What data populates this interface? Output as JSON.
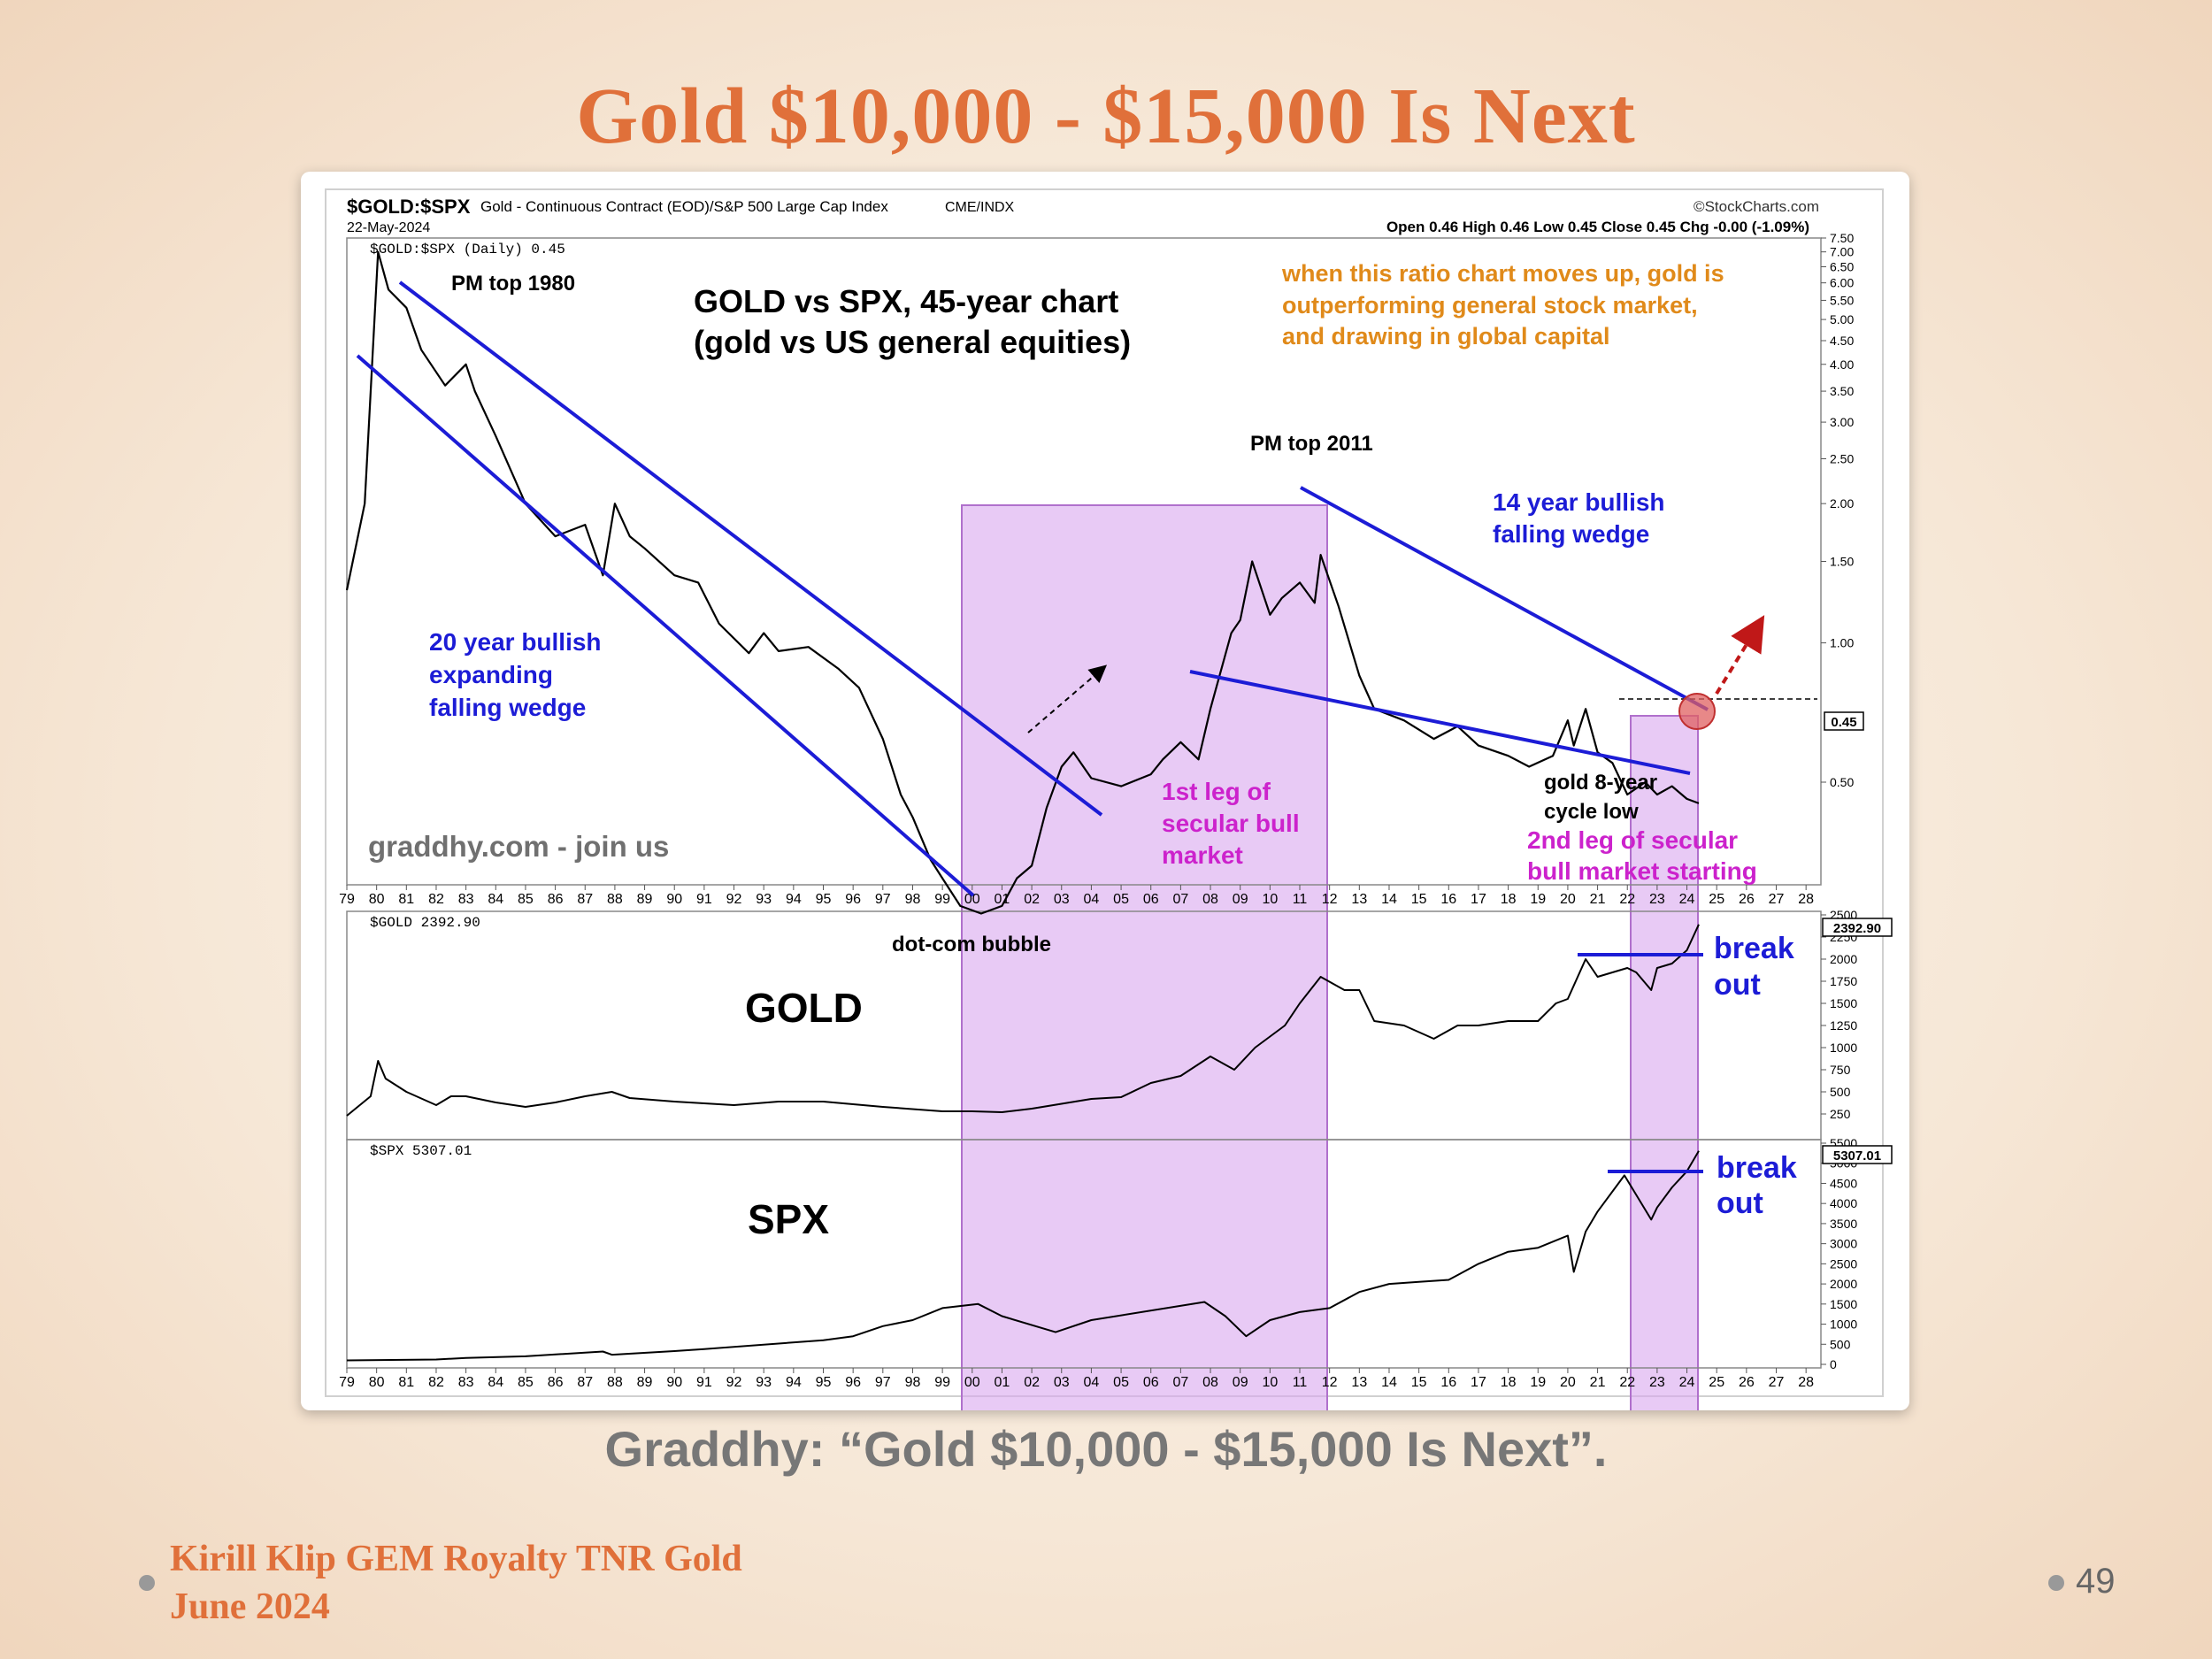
{
  "slide": {
    "title": "Gold $10,000 - $15,000 Is Next",
    "caption": "Graddhy: “Gold $10,000 - $15,000 Is Next”.",
    "footer_line1": "Kirill Klip GEM Royalty TNR Gold",
    "footer_line2": "June 2024",
    "page_number": "49"
  },
  "colors": {
    "title": "#e0703a",
    "annotation_blue": "#1c1cd6",
    "annotation_magenta": "#cc22cc",
    "annotation_orange": "#e08a1a",
    "highlight_band": "#d9a6ee",
    "trendline": "#1c1cd6",
    "price_line": "#000000",
    "arrow_red": "#c01818"
  },
  "header": {
    "symbol": "$GOLD:$SPX",
    "description": "Gold - Continuous Contract (EOD)/S&P 500 Large Cap Index",
    "exchange": "CME/INDX",
    "date": "22-May-2024",
    "source": "©StockCharts.com",
    "ohlc": "Open 0.46  High 0.46  Low 0.45  Close 0.45  Chg -0.00 (-1.09%)"
  },
  "annotations": {
    "pm_top_1980": "PM top 1980",
    "chart_title_line1": "GOLD vs SPX, 45-year chart",
    "chart_title_line2": "(gold vs US general equities)",
    "orange_line1": "when this ratio chart moves up, gold is",
    "orange_line2": "outperforming general stock market,",
    "orange_line3": "and drawing in global capital",
    "pm_top_2011": "PM top 2011",
    "wedge14_line1": "14 year bullish",
    "wedge14_line2": "falling wedge",
    "wedge20_line1": "20 year bullish",
    "wedge20_line2": "expanding",
    "wedge20_line3": "falling wedge",
    "first_leg_line1": "1st leg of",
    "first_leg_line2": "secular bull",
    "first_leg_line3": "market",
    "cycle_low_line1": "gold 8-year",
    "cycle_low_line2": "cycle low",
    "second_leg_line1": "2nd leg of secular",
    "second_leg_line2": "bull market starting",
    "watermark": "graddhy.com - join us",
    "dotcom": "dot-com bubble",
    "gold_label": "GOLD",
    "spx_label": "SPX",
    "breakout_line1": "break",
    "breakout_line2": "out"
  },
  "chart_data": [
    {
      "type": "line",
      "title": "$GOLD:$SPX (Daily) 0.45",
      "scale": "log",
      "ylim": [
        0.3,
        7.5
      ],
      "y_ticks": [
        "7.50",
        "7.00",
        "6.50",
        "6.00",
        "5.50",
        "5.00",
        "4.50",
        "4.00",
        "3.50",
        "3.00",
        "2.50",
        "2.00",
        "1.50",
        "1.00",
        "0.50"
      ],
      "last_value_label": "0.45",
      "x_ticks": [
        "79",
        "80",
        "81",
        "82",
        "83",
        "84",
        "85",
        "86",
        "87",
        "88",
        "89",
        "90",
        "91",
        "92",
        "93",
        "94",
        "95",
        "96",
        "97",
        "98",
        "99",
        "00",
        "01",
        "02",
        "03",
        "04",
        "05",
        "06",
        "07",
        "08",
        "09",
        "10",
        "11",
        "12",
        "13",
        "14",
        "15",
        "16",
        "17",
        "18",
        "19",
        "20",
        "21",
        "22",
        "23",
        "24",
        "25",
        "26",
        "27",
        "28"
      ],
      "x_range": [
        1979,
        2028.5
      ],
      "series": [
        {
          "x": [
            1979.0,
            1979.6,
            1980.05,
            1980.4,
            1981.0,
            1981.5,
            1982.3,
            1983.0,
            1983.3,
            1984.0,
            1985.0,
            1986.0,
            1987.0,
            1987.6,
            1988.0,
            1988.5,
            1989.0,
            1990.0,
            1990.8,
            1991.5,
            1992.5,
            1993.0,
            1993.5,
            1994.5,
            1995.5,
            1996.2,
            1997.0,
            1997.6,
            1998.0,
            1998.6,
            1999.0,
            1999.6,
            2000.3,
            2001.0,
            2001.5,
            2002.0,
            2002.5,
            2003.0,
            2003.4,
            2004.0,
            2005.0,
            2006.0,
            2006.4,
            2007.0,
            2007.6,
            2008.0,
            2008.7,
            2009.0,
            2009.4,
            2010.0,
            2010.4,
            2011.0,
            2011.5,
            2011.7,
            2012.3,
            2013.0,
            2013.5,
            2014.5,
            2015.5,
            2016.3,
            2017.0,
            2018.0,
            2018.7,
            2019.5,
            2020.0,
            2020.2,
            2020.6,
            2021.0,
            2021.5,
            2022.0,
            2022.6,
            2023.0,
            2023.5,
            2024.0,
            2024.4
          ],
          "y": [
            1.3,
            2.0,
            7.0,
            5.8,
            5.3,
            4.3,
            3.6,
            4.0,
            3.5,
            2.8,
            2.0,
            1.7,
            1.8,
            1.4,
            2.0,
            1.7,
            1.6,
            1.4,
            1.35,
            1.1,
            0.95,
            1.05,
            0.96,
            0.98,
            0.88,
            0.8,
            0.62,
            0.47,
            0.42,
            0.34,
            0.31,
            0.27,
            0.26,
            0.27,
            0.31,
            0.33,
            0.44,
            0.54,
            0.58,
            0.51,
            0.49,
            0.52,
            0.56,
            0.61,
            0.56,
            0.72,
            1.05,
            1.12,
            1.5,
            1.15,
            1.25,
            1.35,
            1.22,
            1.55,
            1.2,
            0.85,
            0.72,
            0.68,
            0.62,
            0.66,
            0.6,
            0.57,
            0.54,
            0.57,
            0.68,
            0.6,
            0.72,
            0.58,
            0.55,
            0.47,
            0.5,
            0.47,
            0.49,
            0.46,
            0.45
          ]
        }
      ]
    },
    {
      "type": "line",
      "title": "$GOLD 2392.90",
      "ylim": [
        0,
        2500
      ],
      "y_ticks": [
        "2500",
        "2250",
        "2000",
        "1750",
        "1500",
        "1250",
        "1000",
        "750",
        "500",
        "250"
      ],
      "last_value_label": "2392.90",
      "series": [
        {
          "x": [
            1979.0,
            1979.8,
            1980.05,
            1980.3,
            1981.0,
            1982.0,
            1982.5,
            1983.0,
            1984.0,
            1985.0,
            1986.0,
            1987.0,
            1987.9,
            1988.5,
            1990.0,
            1992.0,
            1993.5,
            1995.0,
            1997.0,
            1999.0,
            2000.0,
            2001.0,
            2002.0,
            2004.0,
            2005.0,
            2006.0,
            2007.0,
            2008.0,
            2008.8,
            2009.5,
            2010.5,
            2011.0,
            2011.7,
            2012.5,
            2013.0,
            2013.5,
            2014.5,
            2015.5,
            2016.3,
            2017.0,
            2018.0,
            2019.0,
            2019.6,
            2020.0,
            2020.6,
            2021.0,
            2022.0,
            2022.3,
            2022.8,
            2023.0,
            2023.5,
            2024.0,
            2024.4
          ],
          "y": [
            230,
            450,
            850,
            650,
            500,
            350,
            450,
            450,
            380,
            330,
            380,
            450,
            500,
            430,
            390,
            350,
            390,
            390,
            330,
            280,
            280,
            270,
            310,
            420,
            440,
            600,
            680,
            900,
            750,
            1000,
            1250,
            1500,
            1800,
            1650,
            1650,
            1300,
            1250,
            1100,
            1250,
            1250,
            1300,
            1300,
            1500,
            1550,
            2000,
            1800,
            1900,
            1850,
            1650,
            1900,
            1950,
            2100,
            2392
          ]
        }
      ]
    },
    {
      "type": "line",
      "title": "$SPX 5307.01",
      "ylim": [
        0,
        5500
      ],
      "y_ticks": [
        "5500",
        "5000",
        "4500",
        "4000",
        "3500",
        "3000",
        "2500",
        "2000",
        "1500",
        "1000",
        "500",
        "0"
      ],
      "last_value_label": "5307.01",
      "series": [
        {
          "x": [
            1979.0,
            1982.0,
            1983.0,
            1985.0,
            1987.6,
            1987.9,
            1990.0,
            1991.0,
            1995.0,
            1996.0,
            1997.0,
            1998.0,
            1999.0,
            2000.2,
            2001.0,
            2002.8,
            2004.0,
            2007.8,
            2008.5,
            2009.2,
            2010.0,
            2011.0,
            2012.0,
            2013.0,
            2014.0,
            2015.0,
            2016.0,
            2017.0,
            2018.0,
            2019.0,
            2020.0,
            2020.2,
            2020.6,
            2021.0,
            2021.9,
            2022.8,
            2023.0,
            2023.5,
            2024.0,
            2024.4
          ],
          "y": [
            100,
            120,
            160,
            200,
            320,
            240,
            330,
            380,
            600,
            700,
            950,
            1100,
            1400,
            1500,
            1200,
            800,
            1100,
            1550,
            1200,
            700,
            1100,
            1300,
            1400,
            1800,
            2000,
            2050,
            2100,
            2500,
            2800,
            2900,
            3200,
            2300,
            3300,
            3800,
            4700,
            3600,
            3900,
            4400,
            4800,
            5307
          ]
        }
      ]
    }
  ]
}
